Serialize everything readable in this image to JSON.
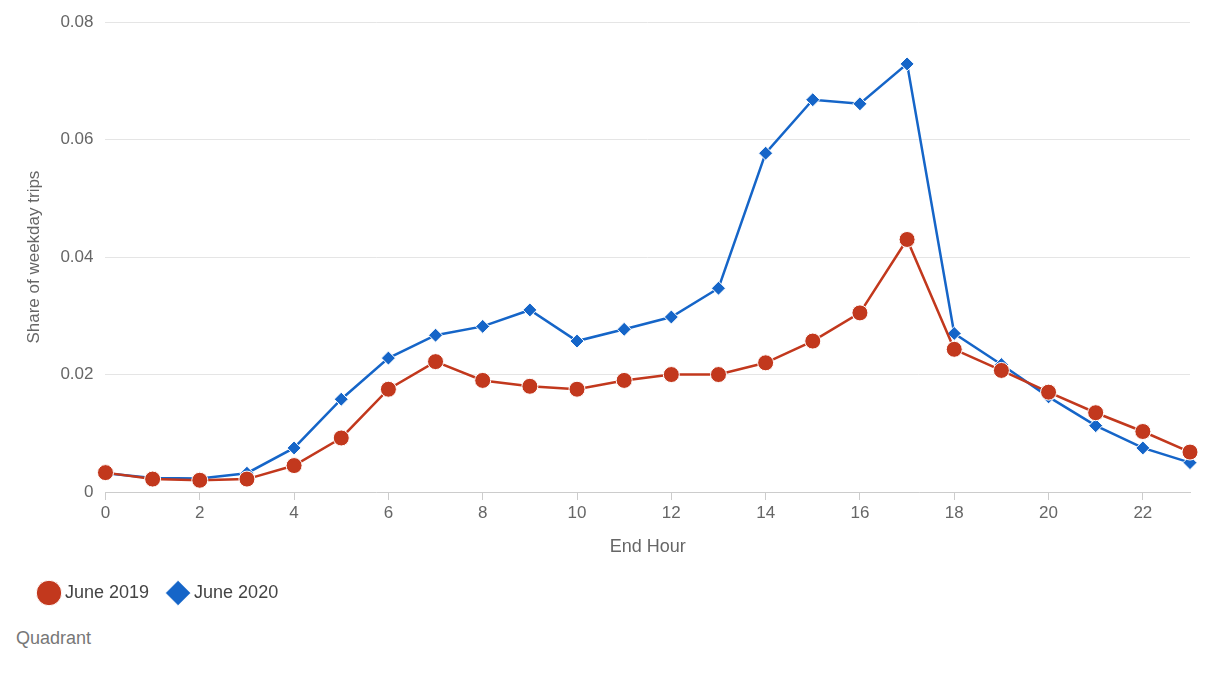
{
  "chart_data": {
    "type": "line",
    "x_label": "End Hour",
    "y_label": "Share of weekday trips",
    "source": "Quadrant",
    "x": [
      0,
      1,
      2,
      3,
      4,
      5,
      6,
      7,
      8,
      9,
      10,
      11,
      12,
      13,
      14,
      15,
      16,
      17,
      18,
      19,
      20,
      21,
      22,
      23
    ],
    "series": [
      {
        "name": "June 2019",
        "color": "#c2381d",
        "marker": "circle",
        "values": [
          0.0033,
          0.0022,
          0.002,
          0.0022,
          0.0045,
          0.0092,
          0.0175,
          0.0222,
          0.019,
          0.018,
          0.0175,
          0.019,
          0.02,
          0.02,
          0.022,
          0.0257,
          0.0305,
          0.043,
          0.0243,
          0.0207,
          0.017,
          0.0135,
          0.0103,
          0.0068
        ]
      },
      {
        "name": "June 2020",
        "color": "#1565c8",
        "marker": "diamond",
        "values": [
          0.0032,
          0.0024,
          0.0023,
          0.0032,
          0.0075,
          0.0158,
          0.0228,
          0.0267,
          0.0282,
          0.031,
          0.0257,
          0.0277,
          0.0298,
          0.0347,
          0.0577,
          0.0668,
          0.0661,
          0.0729,
          0.027,
          0.0217,
          0.0162,
          0.0113,
          0.0075,
          0.005
        ]
      }
    ],
    "xlim": [
      0,
      23
    ],
    "xticks": [
      0,
      2,
      4,
      6,
      8,
      10,
      12,
      14,
      16,
      18,
      20,
      22
    ],
    "ylim": [
      0,
      0.08
    ],
    "yticks": [
      0,
      0.02,
      0.04,
      0.06,
      0.08
    ],
    "grid": true,
    "legend": "bottom-left"
  }
}
